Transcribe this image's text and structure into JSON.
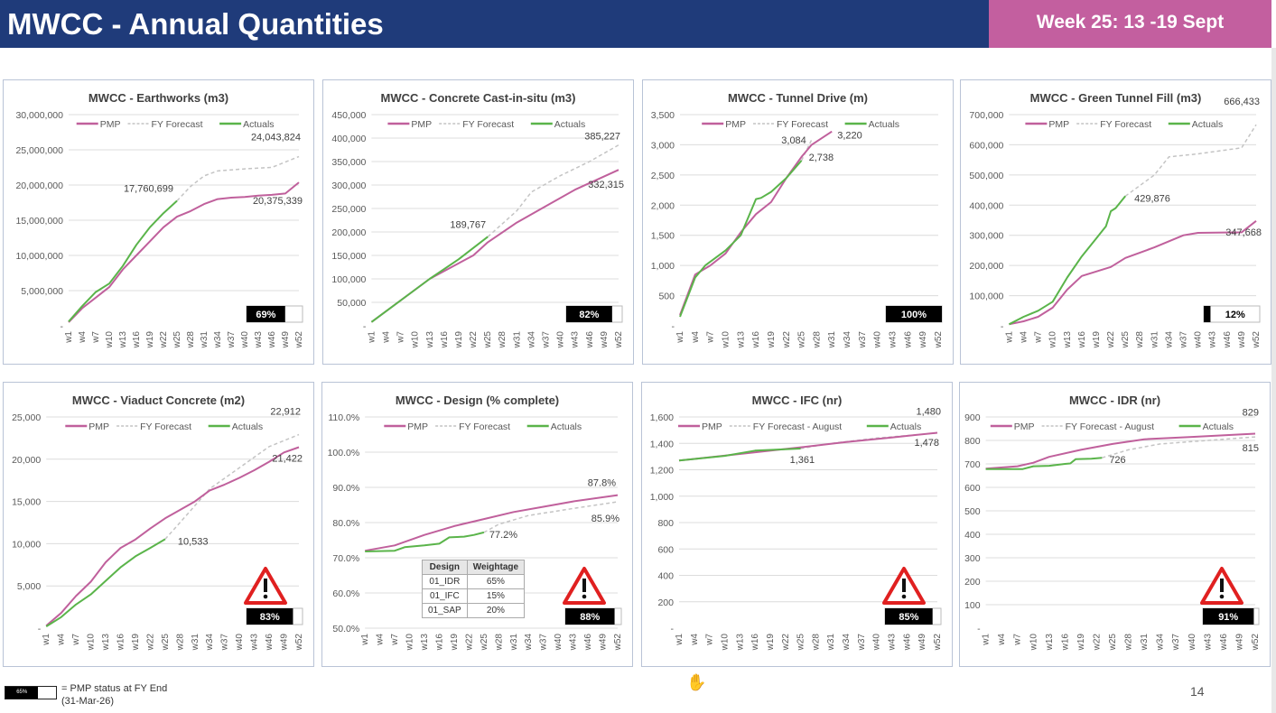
{
  "header": {
    "title": "MWCC - Annual Quantities",
    "week": "Week 25: 13 -19 Sept"
  },
  "colors": {
    "header_bg": "#1f3b7a",
    "week_bg": "#c35f9f",
    "pmp": "#c0609c",
    "forecast": "#c4c4c4",
    "actuals": "#5ab44a",
    "warning": "#e02020"
  },
  "footer": {
    "legend_sample": "65%",
    "legend_text": "= PMP status at FY End (31-Mar-26)",
    "page_number": "14"
  },
  "x_weeks": [
    "w1",
    "w4",
    "w7",
    "w10",
    "w13",
    "w16",
    "w19",
    "w22",
    "w25",
    "w28",
    "w31",
    "w34",
    "w37",
    "w40",
    "w43",
    "w46",
    "w49",
    "w52"
  ],
  "charts": [
    {
      "title": "MWCC - Earthworks (m3)",
      "type": "line",
      "ylim": [
        0,
        30000000
      ],
      "tick_labels": [
        "-",
        "5,000,000",
        "10,000,000",
        "15,000,000",
        "20,000,000",
        "25,000,000",
        "30,000,000"
      ],
      "legend": [
        "PMP",
        "FY Forecast",
        "Actuals"
      ],
      "series": {
        "PMP": [
          [
            1,
            500000
          ],
          [
            4,
            2500000
          ],
          [
            7,
            4000000
          ],
          [
            10,
            5500000
          ],
          [
            13,
            8000000
          ],
          [
            16,
            10000000
          ],
          [
            19,
            12000000
          ],
          [
            22,
            14000000
          ],
          [
            25,
            15500000
          ],
          [
            28,
            16300000
          ],
          [
            31,
            17300000
          ],
          [
            34,
            18000000
          ],
          [
            37,
            18200000
          ],
          [
            40,
            18300000
          ],
          [
            43,
            18500000
          ],
          [
            46,
            18600000
          ],
          [
            49,
            18800000
          ],
          [
            52,
            20375339
          ]
        ],
        "Actuals": [
          [
            1,
            600000
          ],
          [
            4,
            2800000
          ],
          [
            7,
            4800000
          ],
          [
            10,
            6000000
          ],
          [
            13,
            8500000
          ],
          [
            16,
            11500000
          ],
          [
            19,
            14000000
          ],
          [
            22,
            16000000
          ],
          [
            25,
            17760699
          ]
        ],
        "FY Forecast": [
          [
            25,
            17760699
          ],
          [
            28,
            19800000
          ],
          [
            31,
            21300000
          ],
          [
            34,
            22000000
          ],
          [
            40,
            22300000
          ],
          [
            46,
            22500000
          ],
          [
            52,
            24043824
          ]
        ]
      },
      "labels": [
        {
          "text": "17,760,699",
          "series": "Actuals",
          "week": 25
        },
        {
          "text": "24,043,824",
          "series": "FY Forecast",
          "week": 52
        },
        {
          "text": "20,375,339",
          "series": "PMP",
          "week": 52
        }
      ],
      "pmp_status_pct": 69,
      "warning": false
    },
    {
      "title": "MWCC - Concrete Cast-in-situ (m3)",
      "type": "line",
      "ylim": [
        0,
        450000
      ],
      "tick_labels": [
        "-",
        "50,000",
        "100,000",
        "150,000",
        "200,000",
        "250,000",
        "300,000",
        "350,000",
        "400,000",
        "450,000"
      ],
      "legend": [
        "PMP",
        "FY Forecast",
        "Actuals"
      ],
      "series": {
        "PMP": [
          [
            1,
            8000
          ],
          [
            13,
            100000
          ],
          [
            22,
            150000
          ],
          [
            25,
            178000
          ],
          [
            31,
            220000
          ],
          [
            37,
            255000
          ],
          [
            43,
            290000
          ],
          [
            52,
            332315
          ]
        ],
        "Actuals": [
          [
            1,
            8000
          ],
          [
            13,
            100000
          ],
          [
            19,
            142000
          ],
          [
            25,
            189767
          ]
        ],
        "FY Forecast": [
          [
            25,
            189767
          ],
          [
            31,
            245000
          ],
          [
            34,
            285000
          ],
          [
            40,
            320000
          ],
          [
            46,
            350000
          ],
          [
            52,
            385227
          ]
        ]
      },
      "labels": [
        {
          "text": "189,767",
          "series": "Actuals",
          "week": 25
        },
        {
          "text": "385,227",
          "series": "FY Forecast",
          "week": 52
        },
        {
          "text": "332,315",
          "series": "PMP",
          "week": 52
        }
      ],
      "pmp_status_pct": 82,
      "warning": false
    },
    {
      "title": "MWCC - Tunnel Drive (m)",
      "type": "line",
      "ylim": [
        0,
        3500
      ],
      "tick_labels": [
        "-",
        "500",
        "1,000",
        "1,500",
        "2,000",
        "2,500",
        "3,000",
        "3,500"
      ],
      "legend": [
        "PMP",
        "FY Forecast",
        "Actuals"
      ],
      "series": {
        "PMP": [
          [
            1,
            180
          ],
          [
            4,
            850
          ],
          [
            7,
            1000
          ],
          [
            10,
            1200
          ],
          [
            13,
            1550
          ],
          [
            16,
            1850
          ],
          [
            19,
            2050
          ],
          [
            22,
            2450
          ],
          [
            25,
            2800
          ],
          [
            27,
            3000
          ],
          [
            31,
            3220
          ]
        ],
        "Actuals": [
          [
            1,
            150
          ],
          [
            4,
            800
          ],
          [
            6,
            1000
          ],
          [
            10,
            1250
          ],
          [
            13,
            1500
          ],
          [
            16,
            2100
          ],
          [
            17,
            2120
          ],
          [
            19,
            2220
          ],
          [
            22,
            2450
          ],
          [
            25,
            2738
          ]
        ],
        "FY Forecast": [
          [
            25,
            2738
          ],
          [
            27,
            3084
          ]
        ]
      },
      "labels": [
        {
          "text": "3,084",
          "series": "FY Forecast",
          "week": 27
        },
        {
          "text": "3,220",
          "series": "PMP",
          "week": 31
        },
        {
          "text": "2,738",
          "series": "Actuals",
          "week": 25
        }
      ],
      "pmp_status_pct": 100,
      "warning": false
    },
    {
      "title": "MWCC - Green Tunnel Fill (m3)",
      "type": "line",
      "ylim": [
        0,
        700000
      ],
      "tick_labels": [
        "-",
        "100,000",
        "200,000",
        "300,000",
        "400,000",
        "500,000",
        "600,000",
        "700,000"
      ],
      "legend": [
        "PMP",
        "FY Forecast",
        "Actuals"
      ],
      "series": {
        "PMP": [
          [
            1,
            5000
          ],
          [
            4,
            15000
          ],
          [
            7,
            30000
          ],
          [
            10,
            60000
          ],
          [
            13,
            120000
          ],
          [
            16,
            165000
          ],
          [
            19,
            180000
          ],
          [
            22,
            195000
          ],
          [
            25,
            225000
          ],
          [
            31,
            260000
          ],
          [
            37,
            300000
          ],
          [
            40,
            308000
          ],
          [
            49,
            310000
          ],
          [
            52,
            347668
          ]
        ],
        "Actuals": [
          [
            1,
            5000
          ],
          [
            4,
            30000
          ],
          [
            7,
            50000
          ],
          [
            10,
            80000
          ],
          [
            13,
            160000
          ],
          [
            16,
            230000
          ],
          [
            19,
            290000
          ],
          [
            21,
            330000
          ],
          [
            22,
            380000
          ],
          [
            23,
            390000
          ],
          [
            25,
            429876
          ]
        ],
        "FY Forecast": [
          [
            25,
            429876
          ],
          [
            31,
            500000
          ],
          [
            34,
            560000
          ],
          [
            40,
            570000
          ],
          [
            49,
            590000
          ],
          [
            52,
            666433
          ]
        ]
      },
      "labels": [
        {
          "text": "429,876",
          "series": "Actuals",
          "week": 25
        },
        {
          "text": "666,433",
          "series": "FY Forecast",
          "week": 52
        },
        {
          "text": "347,668",
          "series": "PMP",
          "week": 52
        }
      ],
      "pmp_status_pct": 12,
      "warning": false
    },
    {
      "title": "MWCC - Viaduct Concrete (m2)",
      "type": "line",
      "ylim": [
        0,
        25000
      ],
      "tick_labels": [
        "-",
        "5,000",
        "10,000",
        "15,000",
        "20,000",
        "25,000"
      ],
      "legend": [
        "PMP",
        "FY Forecast",
        "Actuals"
      ],
      "series": {
        "PMP": [
          [
            1,
            300
          ],
          [
            4,
            1800
          ],
          [
            7,
            3800
          ],
          [
            10,
            5500
          ],
          [
            13,
            7800
          ],
          [
            16,
            9500
          ],
          [
            19,
            10500
          ],
          [
            22,
            11800
          ],
          [
            25,
            13000
          ],
          [
            28,
            14000
          ],
          [
            31,
            15000
          ],
          [
            34,
            16300
          ],
          [
            37,
            17000
          ],
          [
            40,
            17800
          ],
          [
            43,
            18700
          ],
          [
            46,
            19700
          ],
          [
            49,
            20800
          ],
          [
            52,
            21422
          ]
        ],
        "Actuals": [
          [
            1,
            200
          ],
          [
            4,
            1300
          ],
          [
            7,
            2800
          ],
          [
            10,
            4000
          ],
          [
            13,
            5600
          ],
          [
            16,
            7200
          ],
          [
            19,
            8500
          ],
          [
            22,
            9500
          ],
          [
            25,
            10533
          ]
        ],
        "FY Forecast": [
          [
            25,
            10533
          ],
          [
            28,
            12500
          ],
          [
            31,
            14500
          ],
          [
            34,
            16500
          ],
          [
            40,
            19000
          ],
          [
            46,
            21500
          ],
          [
            52,
            22912
          ]
        ]
      },
      "labels": [
        {
          "text": "10,533",
          "series": "Actuals",
          "week": 25
        },
        {
          "text": "22,912",
          "series": "FY Forecast",
          "week": 52
        },
        {
          "text": "21,422",
          "series": "PMP",
          "week": 52
        }
      ],
      "pmp_status_pct": 83,
      "warning": true
    },
    {
      "title": "MWCC - Design (% complete)",
      "type": "line",
      "ylim": [
        50,
        110
      ],
      "tick_labels": [
        "50.0%",
        "60.0%",
        "70.0%",
        "80.0%",
        "90.0%",
        "100.0%",
        "110.0%"
      ],
      "legend": [
        "PMP",
        "FY Forecast",
        "Actuals"
      ],
      "series": {
        "PMP": [
          [
            1,
            72
          ],
          [
            7,
            73.5
          ],
          [
            13,
            76.5
          ],
          [
            19,
            79
          ],
          [
            25,
            81
          ],
          [
            31,
            83
          ],
          [
            37,
            84.5
          ],
          [
            43,
            86
          ],
          [
            52,
            87.8
          ]
        ],
        "Actuals": [
          [
            1,
            71.8
          ],
          [
            7,
            72
          ],
          [
            9,
            73
          ],
          [
            13,
            73.5
          ],
          [
            16,
            74
          ],
          [
            18,
            75.8
          ],
          [
            21,
            76
          ],
          [
            23,
            76.5
          ],
          [
            25,
            77.2
          ]
        ],
        "FY Forecast": [
          [
            25,
            77.2
          ],
          [
            28,
            79.5
          ],
          [
            34,
            82
          ],
          [
            43,
            84
          ],
          [
            52,
            85.9
          ]
        ]
      },
      "labels": [
        {
          "text": "77.2%",
          "series": "Actuals",
          "week": 25
        },
        {
          "text": "87.8%",
          "series": "PMP",
          "week": 52
        },
        {
          "text": "85.9%",
          "series": "FY Forecast",
          "week": 52
        }
      ],
      "table": {
        "headers": [
          "Design",
          "Weightage"
        ],
        "rows": [
          [
            "01_IDR",
            "65%"
          ],
          [
            "01_IFC",
            "15%"
          ],
          [
            "01_SAP",
            "20%"
          ]
        ]
      },
      "pmp_status_pct": 88,
      "warning": true
    },
    {
      "title": "MWCC - IFC (nr)",
      "type": "line",
      "ylim": [
        0,
        1600
      ],
      "tick_labels": [
        "-",
        "200",
        "400",
        "600",
        "800",
        "1,000",
        "1,200",
        "1,400",
        "1,600"
      ],
      "legend": [
        "PMP",
        "FY Forecast - August",
        "Actuals"
      ],
      "series": {
        "PMP": [
          [
            1,
            1270
          ],
          [
            13,
            1320
          ],
          [
            25,
            1370
          ],
          [
            34,
            1410
          ],
          [
            43,
            1445
          ],
          [
            52,
            1480
          ]
        ],
        "Actuals": [
          [
            1,
            1270
          ],
          [
            10,
            1305
          ],
          [
            16,
            1345
          ],
          [
            22,
            1355
          ],
          [
            25,
            1361
          ]
        ],
        "FY Forecast": [
          [
            25,
            1361
          ],
          [
            31,
            1400
          ],
          [
            40,
            1440
          ],
          [
            52,
            1478
          ]
        ]
      },
      "labels": [
        {
          "text": "1,480",
          "series": "PMP",
          "week": 52
        },
        {
          "text": "1,478",
          "series": "FY Forecast",
          "week": 52
        },
        {
          "text": "1,361",
          "series": "Actuals",
          "week": 25
        }
      ],
      "pmp_status_pct": 85,
      "warning": true
    },
    {
      "title": "MWCC - IDR (nr)",
      "type": "line",
      "ylim": [
        0,
        900
      ],
      "tick_labels": [
        "-",
        "100",
        "200",
        "300",
        "400",
        "500",
        "600",
        "700",
        "800",
        "900"
      ],
      "legend": [
        "PMP",
        "FY Forecast - August",
        "Actuals"
      ],
      "series": {
        "PMP": [
          [
            1,
            680
          ],
          [
            7,
            690
          ],
          [
            10,
            705
          ],
          [
            13,
            730
          ],
          [
            19,
            760
          ],
          [
            25,
            785
          ],
          [
            31,
            805
          ],
          [
            40,
            815
          ],
          [
            52,
            829
          ]
        ],
        "Actuals": [
          [
            1,
            678
          ],
          [
            8,
            678
          ],
          [
            10,
            690
          ],
          [
            13,
            692
          ],
          [
            16,
            700
          ],
          [
            17,
            702
          ],
          [
            18,
            720
          ],
          [
            21,
            722
          ],
          [
            23,
            726
          ]
        ],
        "FY Forecast": [
          [
            23,
            726
          ],
          [
            28,
            760
          ],
          [
            34,
            785
          ],
          [
            43,
            800
          ],
          [
            52,
            815
          ]
        ]
      },
      "labels": [
        {
          "text": "829",
          "series": "PMP",
          "week": 52
        },
        {
          "text": "815",
          "series": "FY Forecast",
          "week": 52
        },
        {
          "text": "726",
          "series": "Actuals",
          "week": 23
        }
      ],
      "pmp_status_pct": 91,
      "warning": true
    }
  ]
}
